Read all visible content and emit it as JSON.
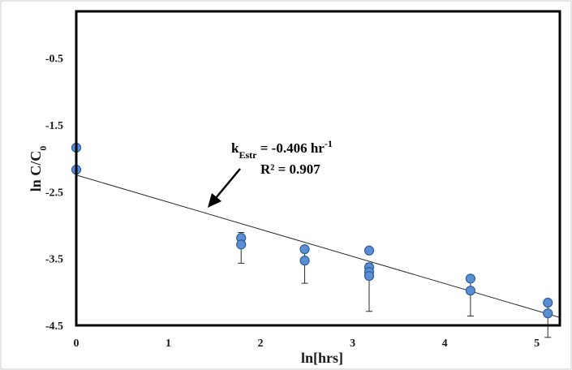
{
  "chart_data": {
    "type": "scatter",
    "title": "",
    "xlabel": "ln[hrs]",
    "ylabel_main": "ln C/C",
    "ylabel_sub": "0",
    "xlim": [
      0,
      5.25
    ],
    "ylim": [
      -4.5,
      0.2
    ],
    "xticks": [
      0,
      1,
      2,
      3,
      4,
      5
    ],
    "yticks": [
      -0.5,
      -1.5,
      -2.5,
      -3.5,
      -4.5
    ],
    "grid": false,
    "point_color": "#5b8fd4",
    "points": [
      {
        "x": 0.0,
        "y": -1.84
      },
      {
        "x": 0.0,
        "y": -2.17
      },
      {
        "x": 1.79,
        "y": -3.19
      },
      {
        "x": 1.79,
        "y": -3.29,
        "err_low": 0.18,
        "err_high": 0.28
      },
      {
        "x": 2.48,
        "y": -3.36
      },
      {
        "x": 2.48,
        "y": -3.53,
        "err_low": 0.17,
        "err_high": 0.34
      },
      {
        "x": 3.18,
        "y": -3.38
      },
      {
        "x": 3.18,
        "y": -3.63
      },
      {
        "x": 3.18,
        "y": -3.7
      },
      {
        "x": 3.18,
        "y": -3.76,
        "err_low": 0.19,
        "err_high": 0.53
      },
      {
        "x": 4.28,
        "y": -3.8
      },
      {
        "x": 4.28,
        "y": -3.98,
        "err_low": 0.2,
        "err_high": 0.38
      },
      {
        "x": 5.12,
        "y": -4.16
      },
      {
        "x": 5.12,
        "y": -4.32,
        "err_low": 0.18,
        "err_high": 0.36
      }
    ],
    "trendline": {
      "slope": -0.406,
      "intercept": -2.25
    },
    "annotation": {
      "k_prefix": "k",
      "k_sub": "Estr",
      "k_value": " = -0.406 hr",
      "k_sup": "-1",
      "r2": "R² = 0.907"
    }
  }
}
